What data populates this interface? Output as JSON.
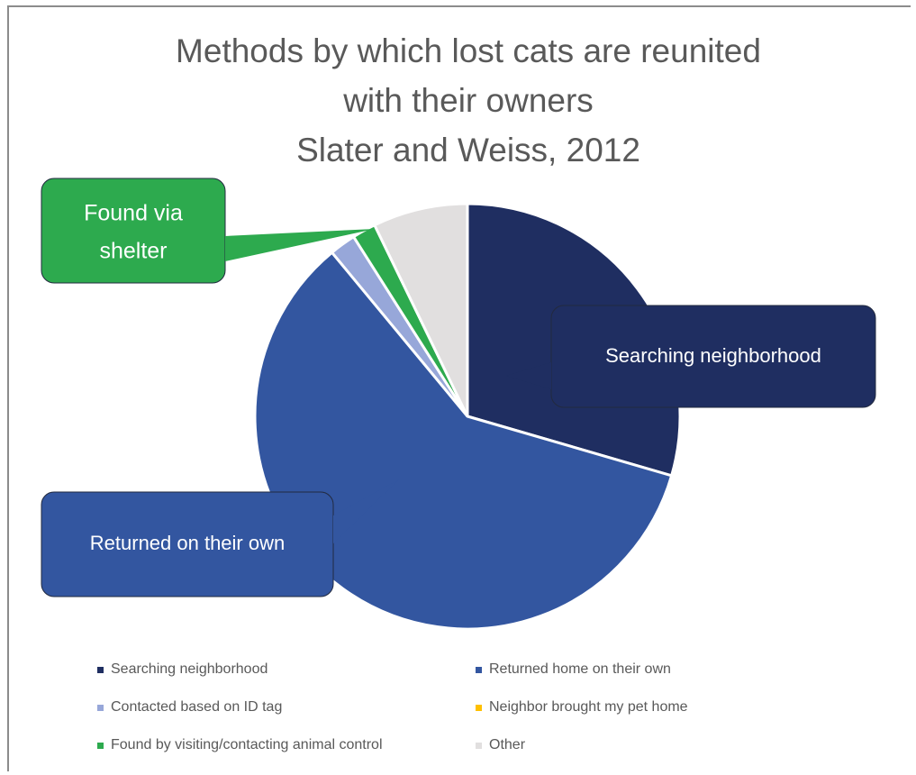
{
  "chart_data": {
    "type": "pie",
    "title_lines": [
      "Methods by which lost cats are reunited",
      "with their owners",
      "Slater and Weiss, 2012"
    ],
    "slices": [
      {
        "label": "Searching neighborhood",
        "value": 29.5,
        "color": "#1F2E61"
      },
      {
        "label": "Returned home on their own",
        "value": 59.5,
        "color": "#3356A0"
      },
      {
        "label": "Contacted based on ID tag",
        "value": 2.0,
        "color": "#97A7D9"
      },
      {
        "label": "Neighbor brought my pet home",
        "value": 0.0,
        "color": "#FFC000"
      },
      {
        "label": "Found by visiting/contacting animal control",
        "value": 1.8,
        "color": "#2DAA4E"
      },
      {
        "label": "Other",
        "value": 7.2,
        "color": "#E1DFDF"
      }
    ],
    "start_angle_deg": 0,
    "legend_position": "bottom",
    "callouts": [
      {
        "slice": "Searching neighborhood",
        "lines": [
          "Searching neighborhood"
        ],
        "color": "#1F2E61"
      },
      {
        "slice": "Returned home on their own",
        "lines": [
          "Returned on their own"
        ],
        "color": "#3356A0"
      },
      {
        "slice": "Found by visiting/contacting animal control",
        "lines": [
          "Found via",
          "shelter"
        ],
        "color": "#2DAA4E"
      }
    ]
  }
}
